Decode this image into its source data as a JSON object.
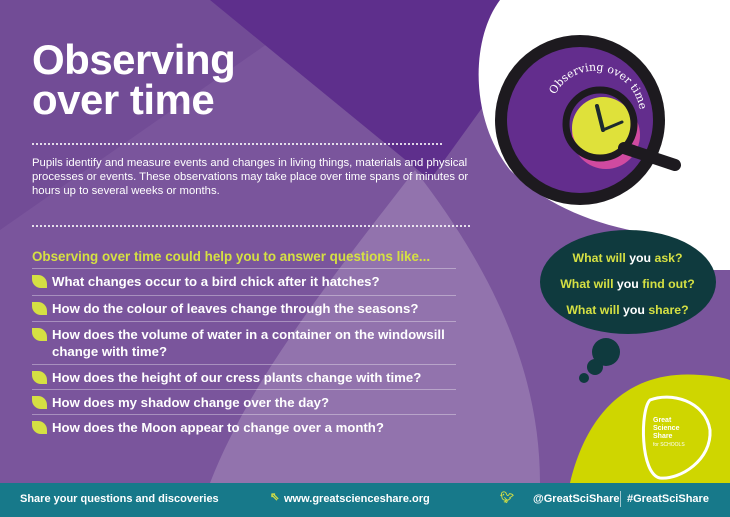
{
  "title_line1": "Observing",
  "title_line2": "over time",
  "intro": "Pupils identify and measure events and changes in living things, materials and physical processes or events. These observations may take place over time spans of minutes or hours up to several weeks or months.",
  "questions_heading": "Observing over time could help you to answer questions like...",
  "questions": [
    "What changes occur to a bird chick after it hatches?",
    "How do the colour of leaves change through the seasons?",
    "How does the volume of water in a container on the windowsill change with time?",
    "How does the height of our cress plants change with time?",
    "How does my shadow change over the day?",
    "How does the Moon appear to change over a month?"
  ],
  "badge_text": "Observing over time",
  "thought": {
    "ask": {
      "pre": "What will ",
      "you": "you",
      "post": " ask?"
    },
    "find": {
      "pre": "What will ",
      "you": "you",
      "post": " find out?"
    },
    "share": {
      "pre": "What will ",
      "you": "you",
      "post": " share?"
    }
  },
  "logo": {
    "line1": "Great",
    "line2": "Science",
    "line3": "Share",
    "line4": "for SCHOOLS"
  },
  "footer": {
    "share": "Share your questions and discoveries",
    "url": "www.greatscienceshare.org",
    "handle": "@GreatSciShare",
    "hashtag": "#GreatSciShare"
  },
  "colors": {
    "purple": "#7a559c",
    "accent": "#d5e043",
    "teal": "#17798a",
    "dark": "#0f3a3e"
  }
}
